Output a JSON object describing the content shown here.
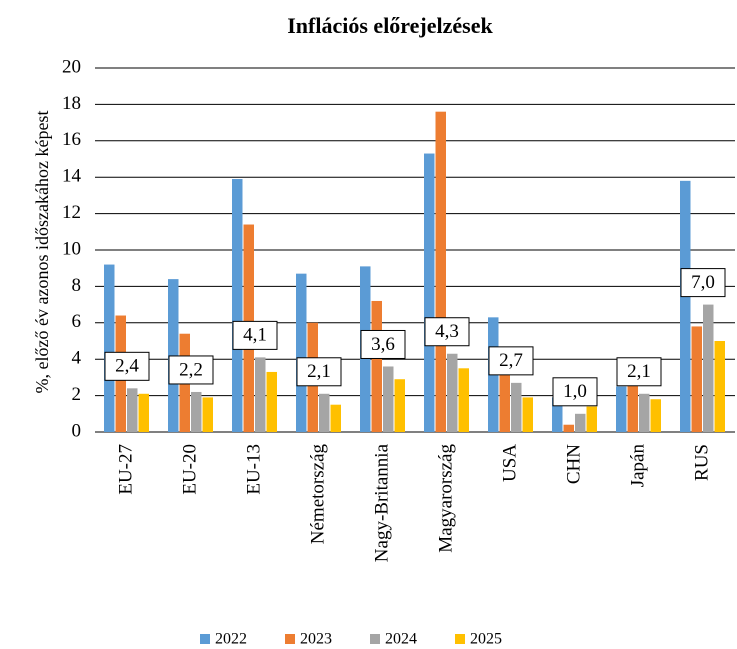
{
  "chart_data": {
    "type": "bar",
    "title": "Inflációs előrejelzések",
    "y_label": "%, előző év azonos időszakához képest",
    "categories": [
      "EU-27",
      "EU-20",
      "EU-13",
      "Németország",
      "Nagy-Britannia",
      "Magyarország",
      "USA",
      "CHN",
      "Japán",
      "RUS"
    ],
    "series": [
      {
        "name": "2022",
        "color": "#5b9bd5",
        "values": [
          9.2,
          8.4,
          13.9,
          8.7,
          9.1,
          15.3,
          6.3,
          1.9,
          2.5,
          13.8
        ]
      },
      {
        "name": "2023",
        "color": "#ed7d31",
        "values": [
          6.4,
          5.4,
          11.4,
          6.0,
          7.2,
          17.6,
          4.1,
          0.4,
          2.9,
          5.8
        ]
      },
      {
        "name": "2024",
        "color": "#a5a5a5",
        "values": [
          2.4,
          2.2,
          4.1,
          2.1,
          3.6,
          4.3,
          2.7,
          1.0,
          2.1,
          7.0
        ],
        "value_labels": [
          "2,4",
          "2,2",
          "4,1",
          "2,1",
          "3,6",
          "4,3",
          "2,7",
          "1,0",
          "2,1",
          "7,0"
        ]
      },
      {
        "name": "2025",
        "color": "#ffc000",
        "values": [
          2.1,
          1.9,
          3.3,
          1.5,
          2.9,
          3.5,
          1.9,
          1.4,
          1.8,
          5.0
        ]
      }
    ],
    "ylim": [
      0,
      20
    ],
    "yticks": [
      0,
      2,
      4,
      6,
      8,
      10,
      12,
      14,
      16,
      18,
      20
    ],
    "grid": true,
    "legend": "bottom"
  }
}
